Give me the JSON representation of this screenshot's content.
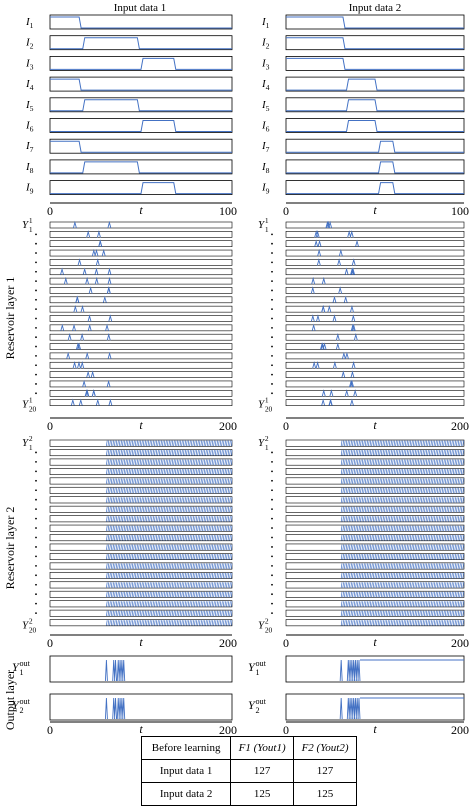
{
  "columns": [
    "Input data 1",
    "Input data 2"
  ],
  "row_labels": [
    "Reservoir layer 1",
    "Reservoir layer 2",
    "Output layer"
  ],
  "chart_data": [
    {
      "type": "line",
      "panel": "input",
      "column": "Input data 1",
      "xlabel": "t",
      "xlim": [
        0,
        100
      ],
      "x_ticks": [
        "0",
        "100"
      ],
      "signals": [
        {
          "label": "I1",
          "pulses": [
            [
              0,
              16
            ]
          ]
        },
        {
          "label": "I2",
          "pulses": [
            [
              18,
              48
            ]
          ]
        },
        {
          "label": "I3",
          "pulses": [
            [
              50,
              68
            ]
          ]
        },
        {
          "label": "I4",
          "pulses": [
            [
              0,
              16
            ]
          ]
        },
        {
          "label": "I5",
          "pulses": [
            [
              18,
              48
            ]
          ]
        },
        {
          "label": "I6",
          "pulses": [
            [
              50,
              68
            ]
          ]
        },
        {
          "label": "I7",
          "pulses": [
            [
              0,
              16
            ]
          ]
        },
        {
          "label": "I8",
          "pulses": [
            [
              18,
              48
            ]
          ]
        },
        {
          "label": "I9",
          "pulses": [
            [
              50,
              68
            ]
          ]
        }
      ]
    },
    {
      "type": "line",
      "panel": "input",
      "column": "Input data 2",
      "xlabel": "t",
      "xlim": [
        0,
        100
      ],
      "x_ticks": [
        "0",
        "100"
      ],
      "signals": [
        {
          "label": "I1",
          "pulses": [
            [
              0,
              32
            ]
          ]
        },
        {
          "label": "I2",
          "pulses": [
            [
              0,
              32
            ]
          ]
        },
        {
          "label": "I3",
          "pulses": [
            [
              0,
              32
            ]
          ]
        },
        {
          "label": "I4",
          "pulses": [
            [
              34,
              50
            ]
          ]
        },
        {
          "label": "I5",
          "pulses": [
            [
              34,
              50
            ]
          ]
        },
        {
          "label": "I6",
          "pulses": [
            [
              34,
              50
            ]
          ]
        },
        {
          "label": "I7",
          "pulses": [
            [
              52,
              60
            ]
          ]
        },
        {
          "label": "I8",
          "pulses": [
            [
              52,
              60
            ]
          ]
        },
        {
          "label": "I9",
          "pulses": [
            [
              52,
              60
            ]
          ]
        }
      ]
    },
    {
      "type": "line",
      "panel": "reservoir1",
      "column": "Input data 1",
      "xlabel": "t",
      "xlim": [
        0,
        200
      ],
      "x_ticks": [
        "0",
        "200"
      ],
      "first_label": "Y_1^1",
      "last_label": "Y_20^1",
      "neurons": 20,
      "spike_window": [
        10,
        70
      ]
    },
    {
      "type": "line",
      "panel": "reservoir1",
      "column": "Input data 2",
      "xlabel": "t",
      "xlim": [
        0,
        200
      ],
      "x_ticks": [
        "0",
        "200"
      ],
      "first_label": "Y_1^1",
      "last_label": "Y_20^1",
      "neurons": 20,
      "spike_window": [
        30,
        80
      ]
    },
    {
      "type": "line",
      "panel": "reservoir2",
      "column": "Input data 1",
      "xlabel": "t",
      "xlim": [
        0,
        200
      ],
      "x_ticks": [
        "0",
        "200"
      ],
      "first_label": "Y_1^2",
      "last_label": "Y_20^2",
      "neurons": 20,
      "oscillation_start": 62
    },
    {
      "type": "line",
      "panel": "reservoir2",
      "column": "Input data 2",
      "xlabel": "t",
      "xlim": [
        0,
        200
      ],
      "x_ticks": [
        "0",
        "200"
      ],
      "first_label": "Y_1^2",
      "last_label": "Y_20^2",
      "neurons": 20,
      "oscillation_start": 62
    },
    {
      "type": "line",
      "panel": "output",
      "column": "Input data 1",
      "xlabel": "t",
      "xlim": [
        0,
        200
      ],
      "x_ticks": [
        "0",
        "200"
      ],
      "outputs": [
        {
          "label": "Y_1^out",
          "spikes": [
            62,
            70,
            72,
            75,
            77,
            79,
            81
          ]
        },
        {
          "label": "Y_2^out",
          "spikes": [
            62,
            70,
            72,
            75,
            77,
            79,
            81
          ]
        }
      ]
    },
    {
      "type": "line",
      "panel": "output",
      "column": "Input data 2",
      "xlabel": "t",
      "xlim": [
        0,
        200
      ],
      "x_ticks": [
        "0",
        "200"
      ],
      "outputs": [
        {
          "label": "Y_1^out",
          "spikes": [
            62,
            70,
            72,
            74,
            76,
            78,
            80,
            82
          ]
        },
        {
          "label": "Y_2^out",
          "spikes": [
            62,
            70,
            72,
            74,
            76,
            78,
            80,
            82
          ]
        }
      ]
    }
  ],
  "table": {
    "header": [
      "Before learning",
      "F1 (Yout1)",
      "F2 (Yout2)"
    ],
    "rows": [
      [
        "Input data 1",
        "127",
        "127"
      ],
      [
        "Input data 2",
        "125",
        "125"
      ]
    ]
  },
  "colors": {
    "trace": "#4472c4",
    "box": "#000000"
  }
}
